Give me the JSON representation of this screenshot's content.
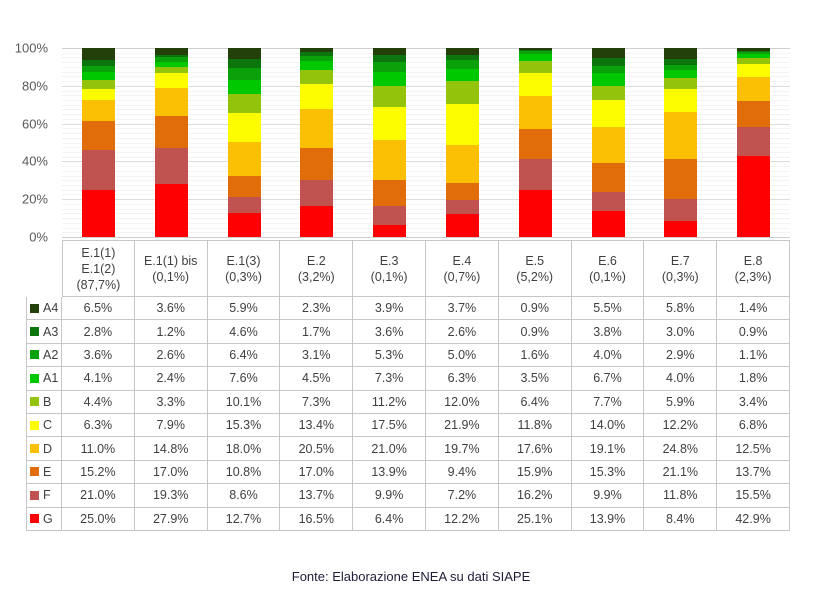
{
  "chart_data": {
    "type": "bar",
    "stacked": true,
    "title": "",
    "xlabel": "",
    "ylabel": "",
    "ylim": [
      0,
      100
    ],
    "grid": true,
    "y_tick_labels": [
      "100%",
      "80%",
      "60%",
      "40%",
      "20%",
      "0%"
    ],
    "y_tick_values": [
      100,
      80,
      60,
      40,
      20,
      0
    ],
    "legend_position": "table-left-column",
    "categories": [
      {
        "label_lines": [
          "E.1(1)",
          "E.1(2)",
          "(87,7%)"
        ]
      },
      {
        "label_lines": [
          "E.1(1) bis",
          "(0,1%)"
        ]
      },
      {
        "label_lines": [
          "E.1(3)",
          "(0,3%)"
        ]
      },
      {
        "label_lines": [
          "E.2",
          "(3,2%)"
        ]
      },
      {
        "label_lines": [
          "E.3",
          "(0,1%)"
        ]
      },
      {
        "label_lines": [
          "E.4",
          "(0,7%)"
        ]
      },
      {
        "label_lines": [
          "E.5",
          "(5,2%)"
        ]
      },
      {
        "label_lines": [
          "E.6",
          "(0,1%)"
        ]
      },
      {
        "label_lines": [
          "E.7",
          "(0,3%)"
        ]
      },
      {
        "label_lines": [
          "E.8",
          "(2,3%)"
        ]
      }
    ],
    "series": [
      {
        "name": "A4",
        "color": "#24400a",
        "values": [
          6.5,
          3.6,
          5.9,
          2.3,
          3.9,
          3.7,
          0.9,
          5.5,
          5.8,
          1.4
        ]
      },
      {
        "name": "A3",
        "color": "#0d750d",
        "values": [
          2.8,
          1.2,
          4.6,
          1.7,
          3.6,
          2.6,
          0.9,
          3.8,
          3.0,
          0.9
        ]
      },
      {
        "name": "A2",
        "color": "#0aa10a",
        "values": [
          3.6,
          2.6,
          6.4,
          3.1,
          5.3,
          5.0,
          1.6,
          4.0,
          2.9,
          1.1
        ]
      },
      {
        "name": "A1",
        "color": "#00c800",
        "values": [
          4.1,
          2.4,
          7.6,
          4.5,
          7.3,
          6.3,
          3.5,
          6.7,
          4.0,
          1.8
        ]
      },
      {
        "name": "B",
        "color": "#93c40b",
        "values": [
          4.4,
          3.3,
          10.1,
          7.3,
          11.2,
          12.0,
          6.4,
          7.7,
          5.9,
          3.4
        ]
      },
      {
        "name": "C",
        "color": "#fdfd00",
        "values": [
          6.3,
          7.9,
          15.3,
          13.4,
          17.5,
          21.9,
          11.8,
          14.0,
          12.2,
          6.8
        ]
      },
      {
        "name": "D",
        "color": "#fbbf04",
        "values": [
          11.0,
          14.8,
          18.0,
          20.5,
          21.0,
          19.7,
          17.6,
          19.1,
          24.8,
          12.5
        ]
      },
      {
        "name": "E",
        "color": "#e06d09",
        "values": [
          15.2,
          17.0,
          10.8,
          17.0,
          13.9,
          9.4,
          15.9,
          15.3,
          21.1,
          13.7
        ]
      },
      {
        "name": "F",
        "color": "#c05250",
        "values": [
          21.0,
          19.3,
          8.6,
          13.7,
          9.9,
          7.2,
          16.2,
          9.9,
          11.8,
          15.5
        ]
      },
      {
        "name": "G",
        "color": "#fe0000",
        "values": [
          25.0,
          27.9,
          12.7,
          16.5,
          6.4,
          12.2,
          25.1,
          13.9,
          8.4,
          42.9
        ]
      }
    ],
    "stack_order_bottom_to_top": [
      "G",
      "F",
      "E",
      "D",
      "C",
      "B",
      "A1",
      "A2",
      "A3",
      "A4"
    ],
    "value_format": "percent_one_decimal"
  },
  "footer": {
    "source_note": "Fonte: Elaborazione ENEA su dati SIAPE"
  }
}
